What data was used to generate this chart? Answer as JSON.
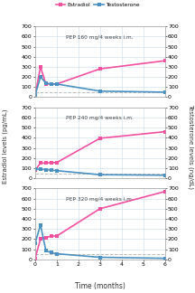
{
  "panels": [
    {
      "label": "PEP 160 mg/4 weeks i.m.",
      "estradiol_x": [
        0,
        0.25,
        0.5,
        0.75,
        1,
        3,
        6
      ],
      "estradiol_y": [
        20,
        300,
        130,
        130,
        130,
        280,
        360
      ],
      "testosterone_x": [
        0,
        0.25,
        0.5,
        0.75,
        1,
        3,
        6
      ],
      "testosterone_y": [
        20,
        200,
        140,
        130,
        130,
        60,
        50
      ]
    },
    {
      "label": "PEP 240 mg/4 weeks i.m.",
      "estradiol_x": [
        0,
        0.25,
        0.5,
        0.75,
        1,
        3,
        6
      ],
      "estradiol_y": [
        80,
        150,
        150,
        155,
        155,
        395,
        460
      ],
      "testosterone_x": [
        0,
        0.25,
        0.5,
        0.75,
        1,
        3,
        6
      ],
      "testosterone_y": [
        90,
        90,
        85,
        80,
        75,
        35,
        30
      ]
    },
    {
      "label": "PEP 320 mg/4 weeks i.m.",
      "estradiol_x": [
        0,
        0.25,
        0.5,
        0.75,
        1,
        3,
        6
      ],
      "estradiol_y": [
        10,
        200,
        215,
        230,
        230,
        500,
        670
      ],
      "testosterone_x": [
        0,
        0.25,
        0.5,
        0.75,
        1,
        3,
        6
      ],
      "testosterone_y": [
        160,
        340,
        85,
        65,
        55,
        20,
        10
      ]
    }
  ],
  "estradiol_color": "#F050A0",
  "testosterone_color": "#4A90C0",
  "dashed_line_color": "#BBBBBB",
  "dashed_line_y": 50,
  "ylim": [
    0,
    700
  ],
  "yticks": [
    0,
    100,
    200,
    300,
    400,
    500,
    600,
    700
  ],
  "xlim": [
    0,
    6
  ],
  "xticks": [
    0,
    1,
    2,
    3,
    4,
    5,
    6
  ],
  "xlabel": "Time (months)",
  "ylabel_left": "Estradiol levels (pg/mL)",
  "ylabel_right": "Testosterone levels (ng/dL)",
  "legend_estradiol": "Estradiol",
  "legend_testosterone": "Testosterone",
  "grid_color": "#C8DCE8",
  "background_color": "#FFFFFF",
  "marker_size": 3,
  "line_width": 1.2
}
